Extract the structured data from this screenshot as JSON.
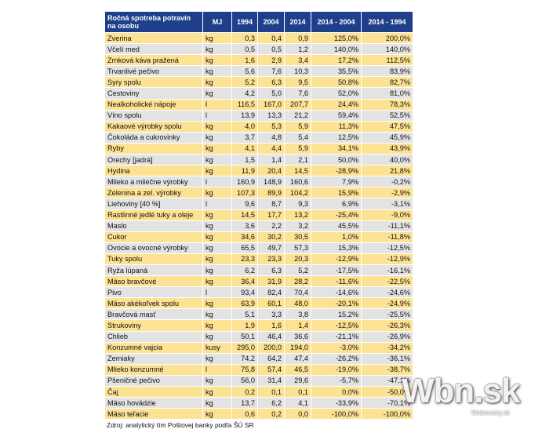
{
  "table": {
    "headers": [
      "Ročná spotreba potravín na osobu",
      "MJ",
      "1994",
      "2004",
      "2014",
      "2014 - 2004",
      "2014 - 1994"
    ],
    "rows": [
      [
        "Zverina",
        "kg",
        "0,3",
        "0,4",
        "0,9",
        "125,0%",
        "200,0%"
      ],
      [
        "Včelí med",
        "kg",
        "0,5",
        "0,5",
        "1,2",
        "140,0%",
        "140,0%"
      ],
      [
        "Zrnková káva pražená",
        "kg",
        "1,6",
        "2,9",
        "3,4",
        "17,2%",
        "112,5%"
      ],
      [
        "Trvanlivé pečivo",
        "kg",
        "5,6",
        "7,6",
        "10,3",
        "35,5%",
        "83,9%"
      ],
      [
        "Syry spolu",
        "kg",
        "5,2",
        "6,3",
        "9,5",
        "50,8%",
        "82,7%"
      ],
      [
        "Cestoviny",
        "kg",
        "4,2",
        "5,0",
        "7,6",
        "52,0%",
        "81,0%"
      ],
      [
        "Nealkoholické nápoje",
        "l",
        "116,5",
        "167,0",
        "207,7",
        "24,4%",
        "78,3%"
      ],
      [
        "Víno spolu",
        "l",
        "13,9",
        "13,3",
        "21,2",
        "59,4%",
        "52,5%"
      ],
      [
        "Kakaové výrobky spolu",
        "kg",
        "4,0",
        "5,3",
        "5,9",
        "11,3%",
        "47,5%"
      ],
      [
        "Čokoláda a cukrovinky",
        "kg",
        "3,7",
        "4,8",
        "5,4",
        "12,5%",
        "45,9%"
      ],
      [
        "Ryby",
        "kg",
        "4,1",
        "4,4",
        "5,9",
        "34,1%",
        "43,9%"
      ],
      [
        "Orechy [jadrá]",
        "kg",
        "1,5",
        "1,4",
        "2,1",
        "50,0%",
        "40,0%"
      ],
      [
        "Hydina",
        "kg",
        "11,9",
        "20,4",
        "14,5",
        "-28,9%",
        "21,8%"
      ],
      [
        "Mlieko a mliečne výrobky",
        "l",
        "160,9",
        "148,9",
        "160,6",
        "7,9%",
        "-0,2%"
      ],
      [
        "Zelenina a zel. výrobky",
        "kg",
        "107,3",
        "89,9",
        "104,2",
        "15,9%",
        "-2,9%"
      ],
      [
        "Liehoviny [40 %]",
        "l",
        "9,6",
        "8,7",
        "9,3",
        "6,9%",
        "-3,1%"
      ],
      [
        "Rastlinné jedlé tuky a oleje",
        "kg",
        "14,5",
        "17,7",
        "13,2",
        "-25,4%",
        "-9,0%"
      ],
      [
        "Maslo",
        "kg",
        "3,6",
        "2,2",
        "3,2",
        "45,5%",
        "-11,1%"
      ],
      [
        "Cukor",
        "kg",
        "34,6",
        "30,2",
        "30,5",
        "1,0%",
        "-11,8%"
      ],
      [
        "Ovocie a ovocné výrobky",
        "kg",
        "65,5",
        "49,7",
        "57,3",
        "15,3%",
        "-12,5%"
      ],
      [
        "Tuky spolu",
        "kg",
        "23,3",
        "23,3",
        "20,3",
        "-12,9%",
        "-12,9%"
      ],
      [
        "Ryža lúpaná",
        "kg",
        "6,2",
        "6,3",
        "5,2",
        "-17,5%",
        "-16,1%"
      ],
      [
        "Mäso bravčové",
        "kg",
        "36,4",
        "31,9",
        "28,2",
        "-11,6%",
        "-22,5%"
      ],
      [
        "Pivo",
        "l",
        "93,4",
        "82,4",
        "70,4",
        "-14,6%",
        "-24,6%"
      ],
      [
        "Mäso akékoľvek spolu",
        "kg",
        "63,9",
        "60,1",
        "48,0",
        "-20,1%",
        "-24,9%"
      ],
      [
        "Bravčová masť",
        "kg",
        "5,1",
        "3,3",
        "3,8",
        "15,2%",
        "-25,5%"
      ],
      [
        "Strukoviny",
        "kg",
        "1,9",
        "1,6",
        "1,4",
        "-12,5%",
        "-26,3%"
      ],
      [
        "Chlieb",
        "kg",
        "50,1",
        "46,4",
        "36,6",
        "-21,1%",
        "-26,9%"
      ],
      [
        "Konzumné vajcia",
        "kusy",
        "295,0",
        "200,0",
        "194,0",
        "-3,0%",
        "-34,2%"
      ],
      [
        "Zemiaky",
        "kg",
        "74,2",
        "64,2",
        "47,4",
        "-26,2%",
        "-36,1%"
      ],
      [
        "Mlieko konzumné",
        "l",
        "75,8",
        "57,4",
        "46,5",
        "-19,0%",
        "-38,7%"
      ],
      [
        "Pšeničné pečivo",
        "kg",
        "56,0",
        "31,4",
        "29,6",
        "-5,7%",
        "-47,1%"
      ],
      [
        "Čaj",
        "kg",
        "0,2",
        "0,1",
        "0,1",
        "0,0%",
        "-50,0%"
      ],
      [
        "Mäso hovädzie",
        "kg",
        "13,7",
        "6,2",
        "4,1",
        "-33,9%",
        "-70,1%"
      ],
      [
        "Mäso teľacie",
        "kg",
        "0,6",
        "0,2",
        "0,0",
        "-100,0%",
        "-100,0%"
      ]
    ],
    "source": "Zdroj: analytický tím Poštovej banky podľa ŠÚ SR"
  },
  "watermark": {
    "brand": "Wbn.sk",
    "sub": "Webnoviny.sk"
  },
  "colors": {
    "header_bg": "#1f3f8a",
    "row_yellow": "#fce292",
    "row_gray": "#e3e3e3"
  }
}
